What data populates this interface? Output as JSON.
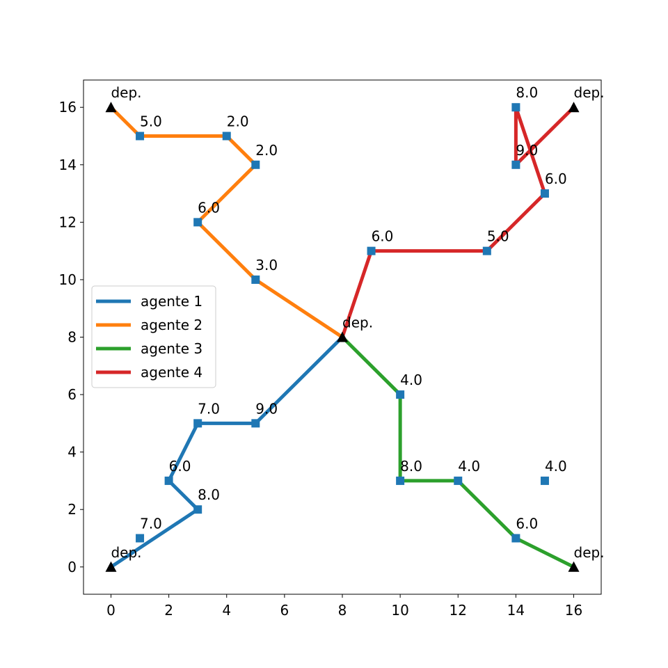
{
  "chart_data": {
    "type": "scatter",
    "xlim": [
      -0.95,
      16.95
    ],
    "ylim": [
      -0.95,
      16.95
    ],
    "x_ticks": [
      0,
      2,
      4,
      6,
      8,
      10,
      12,
      14,
      16
    ],
    "y_ticks": [
      0,
      2,
      4,
      6,
      8,
      10,
      12,
      14,
      16
    ],
    "grid": false,
    "legend_position": "center-left",
    "node_color": "#1f77b4",
    "depot_color": "#000000",
    "series": [
      {
        "name": "agente 1",
        "color": "#1f77b4",
        "x": [
          0,
          3,
          2,
          3,
          5,
          8
        ],
        "y": [
          0,
          2,
          3,
          5,
          5,
          8
        ]
      },
      {
        "name": "agente 2",
        "color": "#ff7f0e",
        "x": [
          0,
          1,
          4,
          5,
          3,
          5,
          8
        ],
        "y": [
          16,
          15,
          15,
          14,
          12,
          10,
          8
        ]
      },
      {
        "name": "agente 3",
        "color": "#2ca02c",
        "x": [
          8,
          10,
          10,
          12,
          14,
          16
        ],
        "y": [
          8,
          6,
          3,
          3,
          1,
          0
        ]
      },
      {
        "name": "agente 4",
        "color": "#d62728",
        "x": [
          8,
          9,
          13,
          15,
          14,
          14,
          16
        ],
        "y": [
          8,
          11,
          11,
          13,
          16,
          14,
          16
        ]
      }
    ],
    "nodes": [
      {
        "x": 1,
        "y": 1,
        "label": "7.0"
      },
      {
        "x": 3,
        "y": 2,
        "label": "8.0"
      },
      {
        "x": 2,
        "y": 3,
        "label": "6.0"
      },
      {
        "x": 3,
        "y": 5,
        "label": "7.0"
      },
      {
        "x": 5,
        "y": 5,
        "label": "9.0"
      },
      {
        "x": 1,
        "y": 15,
        "label": "5.0"
      },
      {
        "x": 4,
        "y": 15,
        "label": "2.0"
      },
      {
        "x": 5,
        "y": 14,
        "label": "2.0"
      },
      {
        "x": 3,
        "y": 12,
        "label": "6.0"
      },
      {
        "x": 5,
        "y": 10,
        "label": "3.0"
      },
      {
        "x": 10,
        "y": 6,
        "label": "4.0"
      },
      {
        "x": 10,
        "y": 3,
        "label": "8.0"
      },
      {
        "x": 12,
        "y": 3,
        "label": "4.0"
      },
      {
        "x": 14,
        "y": 1,
        "label": "6.0"
      },
      {
        "x": 15,
        "y": 3,
        "label": "4.0"
      },
      {
        "x": 9,
        "y": 11,
        "label": "6.0"
      },
      {
        "x": 13,
        "y": 11,
        "label": "5.0"
      },
      {
        "x": 15,
        "y": 13,
        "label": "6.0"
      },
      {
        "x": 14,
        "y": 16,
        "label": "8.0"
      },
      {
        "x": 14,
        "y": 14,
        "label": "9.0"
      }
    ],
    "depots": [
      {
        "x": 0,
        "y": 0,
        "label": "dep."
      },
      {
        "x": 0,
        "y": 16,
        "label": "dep."
      },
      {
        "x": 16,
        "y": 16,
        "label": "dep."
      },
      {
        "x": 16,
        "y": 0,
        "label": "dep."
      },
      {
        "x": 8,
        "y": 8,
        "label": "dep."
      }
    ]
  }
}
